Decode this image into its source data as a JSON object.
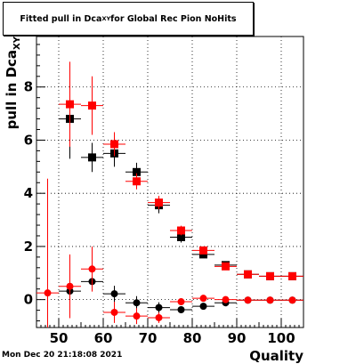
{
  "title": {
    "prefix": "Fitted pull in Dca",
    "subscript": "XY",
    "suffix": " for Global Rec Pion NoHits"
  },
  "timestamp": "Mon Dec 20 21:18:08 2021",
  "chart_data": {
    "type": "scatter",
    "xlabel": "Quality",
    "ylabel": "pull in Dca",
    "ylabel_subscript": "XY",
    "xlim": [
      45,
      105
    ],
    "ylim": [
      -1.05,
      9.9
    ],
    "x_ticks": [
      50,
      60,
      70,
      80,
      90,
      100
    ],
    "y_ticks": [
      0,
      2,
      4,
      6,
      8
    ],
    "grid": true,
    "series": [
      {
        "marker": "square",
        "color": "#000000",
        "points": [
          {
            "x": 52.5,
            "y": 6.8,
            "yerr": 1.5,
            "xerr": 2.5
          },
          {
            "x": 57.5,
            "y": 5.35,
            "yerr": 0.55,
            "xerr": 2.5
          },
          {
            "x": 62.5,
            "y": 5.5,
            "yerr": 0.5,
            "xerr": 2.5
          },
          {
            "x": 67.5,
            "y": 4.8,
            "yerr": 0.35,
            "xerr": 2.5
          },
          {
            "x": 72.5,
            "y": 3.55,
            "yerr": 0.3,
            "xerr": 2.5
          },
          {
            "x": 77.5,
            "y": 2.35,
            "yerr": 0.2,
            "xerr": 2.5
          },
          {
            "x": 82.5,
            "y": 1.7,
            "yerr": 0.12,
            "xerr": 2.5
          },
          {
            "x": 87.5,
            "y": 1.3,
            "yerr": 0.08,
            "xerr": 2.5
          },
          {
            "x": 92.5,
            "y": 0.95,
            "yerr": 0.06,
            "xerr": 2.5
          },
          {
            "x": 97.5,
            "y": 0.88,
            "yerr": 0.05,
            "xerr": 2.5
          },
          {
            "x": 102.5,
            "y": 0.88,
            "yerr": 0.05,
            "xerr": 2.5
          }
        ]
      },
      {
        "marker": "square",
        "color": "#ff0000",
        "points": [
          {
            "x": 52.5,
            "y": 7.35,
            "yerr": 1.6,
            "xerr": 2.5
          },
          {
            "x": 57.5,
            "y": 7.3,
            "yerr": 1.1,
            "xerr": 2.5
          },
          {
            "x": 62.5,
            "y": 5.85,
            "yerr": 0.45,
            "xerr": 2.5
          },
          {
            "x": 67.5,
            "y": 4.45,
            "yerr": 0.3,
            "xerr": 2.5
          },
          {
            "x": 72.5,
            "y": 3.65,
            "yerr": 0.25,
            "xerr": 2.5
          },
          {
            "x": 77.5,
            "y": 2.6,
            "yerr": 0.18,
            "xerr": 2.5
          },
          {
            "x": 82.5,
            "y": 1.85,
            "yerr": 0.12,
            "xerr": 2.5
          },
          {
            "x": 87.5,
            "y": 1.25,
            "yerr": 0.08,
            "xerr": 2.5
          },
          {
            "x": 92.5,
            "y": 0.95,
            "yerr": 0.06,
            "xerr": 2.5
          },
          {
            "x": 97.5,
            "y": 0.88,
            "yerr": 0.05,
            "xerr": 2.5
          },
          {
            "x": 102.5,
            "y": 0.88,
            "yerr": 0.05,
            "xerr": 2.5
          }
        ]
      },
      {
        "marker": "circle",
        "color": "#000000",
        "points": [
          {
            "x": 52.5,
            "y": 0.32,
            "yerr": 0.55,
            "xerr": 2.5
          },
          {
            "x": 57.5,
            "y": 0.68,
            "yerr": 0.35,
            "xerr": 2.5
          },
          {
            "x": 62.5,
            "y": 0.22,
            "yerr": 0.3,
            "xerr": 2.5
          },
          {
            "x": 67.5,
            "y": -0.12,
            "yerr": 0.25,
            "xerr": 2.5
          },
          {
            "x": 72.5,
            "y": -0.3,
            "yerr": 0.2,
            "xerr": 2.5
          },
          {
            "x": 77.5,
            "y": -0.38,
            "yerr": 0.12,
            "xerr": 2.5
          },
          {
            "x": 82.5,
            "y": -0.25,
            "yerr": 0.1,
            "xerr": 2.5
          },
          {
            "x": 87.5,
            "y": -0.12,
            "yerr": 0.06,
            "xerr": 2.5
          },
          {
            "x": 92.5,
            "y": -0.02,
            "yerr": 0.04,
            "xerr": 2.5
          },
          {
            "x": 97.5,
            "y": -0.02,
            "yerr": 0.03,
            "xerr": 2.5
          },
          {
            "x": 102.5,
            "y": -0.02,
            "yerr": 0.03,
            "xerr": 2.5
          }
        ]
      },
      {
        "marker": "circle",
        "color": "#ff0000",
        "points": [
          {
            "x": 47.5,
            "y": 0.25,
            "yerr": 4.3,
            "xerr": 2.5
          },
          {
            "x": 52.5,
            "y": 0.5,
            "yerr": 1.2,
            "xerr": 2.5
          },
          {
            "x": 57.5,
            "y": 1.15,
            "yerr": 0.85,
            "xerr": 2.5
          },
          {
            "x": 62.5,
            "y": -0.48,
            "yerr": 0.4,
            "xerr": 2.5
          },
          {
            "x": 67.5,
            "y": -0.62,
            "yerr": 0.3,
            "xerr": 2.5
          },
          {
            "x": 72.5,
            "y": -0.68,
            "yerr": 0.2,
            "xerr": 2.5
          },
          {
            "x": 77.5,
            "y": -0.08,
            "yerr": 0.12,
            "xerr": 2.5
          },
          {
            "x": 82.5,
            "y": 0.05,
            "yerr": 0.08,
            "xerr": 2.5
          },
          {
            "x": 87.5,
            "y": 0.0,
            "yerr": 0.06,
            "xerr": 2.5
          },
          {
            "x": 92.5,
            "y": -0.02,
            "yerr": 0.04,
            "xerr": 2.5
          },
          {
            "x": 97.5,
            "y": -0.02,
            "yerr": 0.03,
            "xerr": 2.5
          },
          {
            "x": 102.5,
            "y": -0.02,
            "yerr": 0.03,
            "xerr": 2.5
          }
        ]
      }
    ]
  }
}
